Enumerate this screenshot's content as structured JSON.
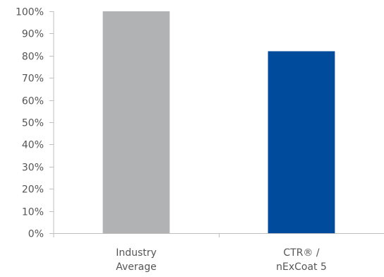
{
  "chart_data": {
    "type": "bar",
    "title": "",
    "xlabel": "",
    "ylabel": "",
    "categories": [
      [
        "Industry",
        "Average"
      ],
      [
        "CTR®  /",
        "nExCoat 5"
      ]
    ],
    "values": [
      100,
      82
    ],
    "bar_colors": [
      "#b1b2b4",
      "#004b9b"
    ],
    "ylim": [
      0,
      100
    ],
    "yticks": [
      0,
      10,
      20,
      30,
      40,
      50,
      60,
      70,
      80,
      90,
      100
    ],
    "ytick_labels": [
      "0%",
      "10%",
      "20%",
      "30%",
      "40%",
      "50%",
      "60%",
      "70%",
      "80%",
      "90%",
      "100%"
    ],
    "grid": false,
    "legend": "none"
  }
}
